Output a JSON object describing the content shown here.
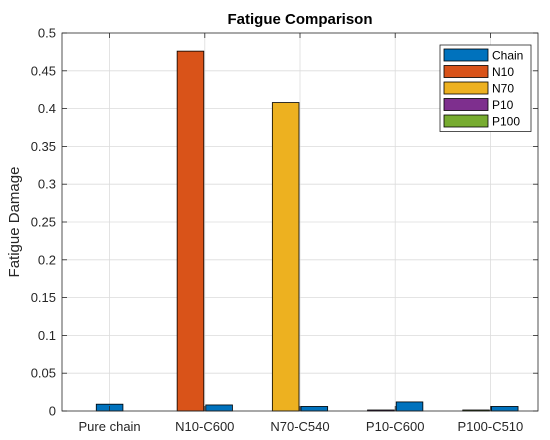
{
  "chart_data": {
    "type": "bar",
    "title": "Fatigue Comparison",
    "xlabel": "",
    "ylabel": "Fatigue Damage",
    "ylim": [
      0,
      0.5
    ],
    "yticks": [
      0,
      0.05,
      0.1,
      0.15,
      0.2,
      0.25,
      0.3,
      0.35,
      0.4,
      0.45,
      0.5
    ],
    "ytick_labels": [
      "0",
      "0.05",
      "0.1",
      "0.15",
      "0.2",
      "0.25",
      "0.3",
      "0.35",
      "0.4",
      "0.45",
      "0.5"
    ],
    "categories": [
      "Pure chain",
      "N10-C600",
      "N70-C540",
      "P10-C600",
      "P100-C510"
    ],
    "grid": true,
    "legend_position": "top-right",
    "series": [
      {
        "name": "Chain",
        "color": "#0072BD",
        "values": [
          0.009,
          0.008,
          0.006,
          0.012,
          0.006
        ]
      },
      {
        "name": "N10",
        "color": "#D95319",
        "values": [
          0,
          0.476,
          0,
          0,
          0
        ]
      },
      {
        "name": "N70",
        "color": "#EDB120",
        "values": [
          0,
          0,
          0.408,
          0,
          0
        ]
      },
      {
        "name": "P10",
        "color": "#7E2F8E",
        "values": [
          0,
          0,
          0,
          0.0005,
          0
        ]
      },
      {
        "name": "P100",
        "color": "#77AC30",
        "values": [
          0,
          0,
          0,
          0,
          0.0005
        ]
      }
    ],
    "bars": [
      {
        "category": "Pure chain",
        "series": "Chain",
        "value": 0.009
      },
      {
        "category": "N10-C600",
        "series": "N10",
        "value": 0.476
      },
      {
        "category": "N10-C600",
        "series": "Chain",
        "value": 0.008
      },
      {
        "category": "N70-C540",
        "series": "N70",
        "value": 0.408
      },
      {
        "category": "N70-C540",
        "series": "Chain",
        "value": 0.006
      },
      {
        "category": "P10-C600",
        "series": "P10",
        "value": 0.0005
      },
      {
        "category": "P10-C600",
        "series": "Chain",
        "value": 0.012
      },
      {
        "category": "P100-C510",
        "series": "P100",
        "value": 0.0005
      },
      {
        "category": "P100-C510",
        "series": "Chain",
        "value": 0.006
      }
    ]
  }
}
